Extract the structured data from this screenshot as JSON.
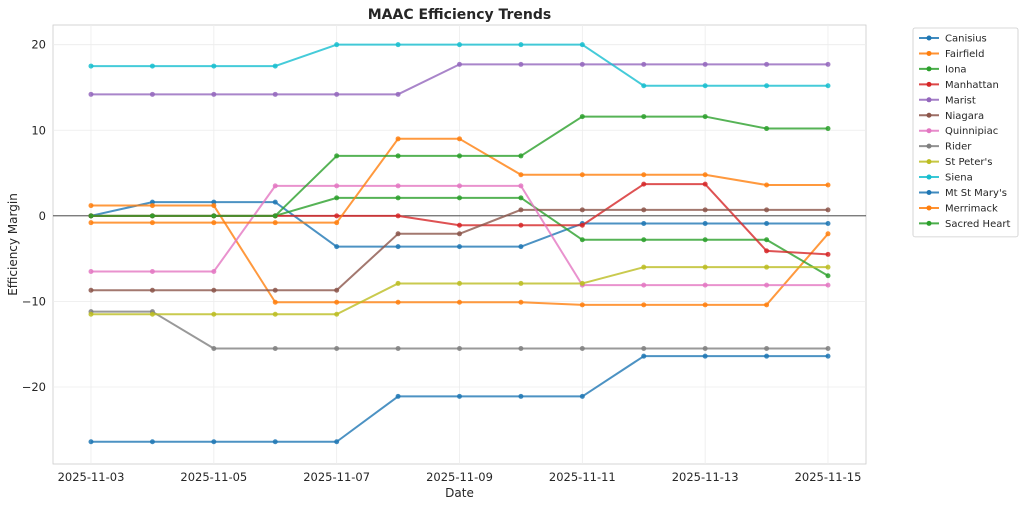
{
  "chart_data": {
    "type": "line",
    "title": "MAAC Efficiency Trends",
    "xlabel": "Date",
    "ylabel": "Efficiency Margin",
    "x": [
      "2025-11-03",
      "2025-11-04",
      "2025-11-05",
      "2025-11-06",
      "2025-11-07",
      "2025-11-08",
      "2025-11-09",
      "2025-11-10",
      "2025-11-11",
      "2025-11-12",
      "2025-11-13",
      "2025-11-14",
      "2025-11-15"
    ],
    "xticks": [
      "2025-11-03",
      "2025-11-05",
      "2025-11-07",
      "2025-11-09",
      "2025-11-11",
      "2025-11-13",
      "2025-11-15"
    ],
    "yticks": [
      -20,
      -10,
      0,
      10,
      20
    ],
    "ylim": [
      -29,
      22.3
    ],
    "grid": true,
    "zero_line": true,
    "legend_position": "outside-top-right",
    "series": [
      {
        "name": "Canisius",
        "color": "#1f77b4",
        "values": [
          0,
          1.6,
          1.6,
          1.6,
          -3.6,
          -3.6,
          -3.6,
          -3.6,
          -0.9,
          -0.9,
          -0.9,
          -0.9,
          -0.9
        ]
      },
      {
        "name": "Fairfield",
        "color": "#ff7f0e",
        "values": [
          1.2,
          1.2,
          1.2,
          -10.1,
          -10.1,
          -10.1,
          -10.1,
          -10.1,
          -10.4,
          -10.4,
          -10.4,
          -10.4,
          -2.1
        ]
      },
      {
        "name": "Iona",
        "color": "#2ca02c",
        "values": [
          0,
          0,
          0,
          0,
          2.1,
          2.1,
          2.1,
          2.1,
          -2.8,
          -2.8,
          -2.8,
          -2.8,
          -7.0
        ]
      },
      {
        "name": "Manhattan",
        "color": "#d62728",
        "values": [
          0,
          0,
          0,
          0,
          0,
          0,
          -1.1,
          -1.1,
          -1.1,
          3.7,
          3.7,
          -4.1,
          -4.5
        ]
      },
      {
        "name": "Marist",
        "color": "#9467bd",
        "values": [
          14.2,
          14.2,
          14.2,
          14.2,
          14.2,
          14.2,
          17.7,
          17.7,
          17.7,
          17.7,
          17.7,
          17.7,
          17.7
        ]
      },
      {
        "name": "Niagara",
        "color": "#8c564b",
        "values": [
          -8.7,
          -8.7,
          -8.7,
          -8.7,
          -8.7,
          -2.1,
          -2.1,
          0.7,
          0.7,
          0.7,
          0.7,
          0.7,
          0.7
        ]
      },
      {
        "name": "Quinnipiac",
        "color": "#e377c2",
        "values": [
          -6.5,
          -6.5,
          -6.5,
          3.5,
          3.5,
          3.5,
          3.5,
          3.5,
          -8.1,
          -8.1,
          -8.1,
          -8.1,
          -8.1
        ]
      },
      {
        "name": "Rider",
        "color": "#7f7f7f",
        "values": [
          -11.2,
          -11.2,
          -15.5,
          -15.5,
          -15.5,
          -15.5,
          -15.5,
          -15.5,
          -15.5,
          -15.5,
          -15.5,
          -15.5,
          -15.5
        ]
      },
      {
        "name": "St Peter's",
        "color": "#bcbd22",
        "values": [
          -11.5,
          -11.5,
          -11.5,
          -11.5,
          -11.5,
          -7.9,
          -7.9,
          -7.9,
          -7.9,
          -6.0,
          -6.0,
          -6.0,
          -6.0
        ]
      },
      {
        "name": "Siena",
        "color": "#17becf",
        "values": [
          17.5,
          17.5,
          17.5,
          17.5,
          20.0,
          20.0,
          20.0,
          20.0,
          20.0,
          15.2,
          15.2,
          15.2,
          15.2
        ]
      },
      {
        "name": "Mt St Mary's",
        "color": "#1f77b4",
        "values": [
          -26.4,
          -26.4,
          -26.4,
          -26.4,
          -26.4,
          -21.1,
          -21.1,
          -21.1,
          -21.1,
          -16.4,
          -16.4,
          -16.4,
          -16.4
        ]
      },
      {
        "name": "Merrimack",
        "color": "#ff7f0e",
        "values": [
          -0.8,
          -0.8,
          -0.8,
          -0.8,
          -0.8,
          9.0,
          9.0,
          4.8,
          4.8,
          4.8,
          4.8,
          3.6,
          3.6
        ]
      },
      {
        "name": "Sacred Heart",
        "color": "#2ca02c",
        "values": [
          0,
          0,
          0,
          0,
          7.0,
          7.0,
          7.0,
          7.0,
          11.6,
          11.6,
          11.6,
          10.2,
          10.2
        ]
      }
    ]
  }
}
